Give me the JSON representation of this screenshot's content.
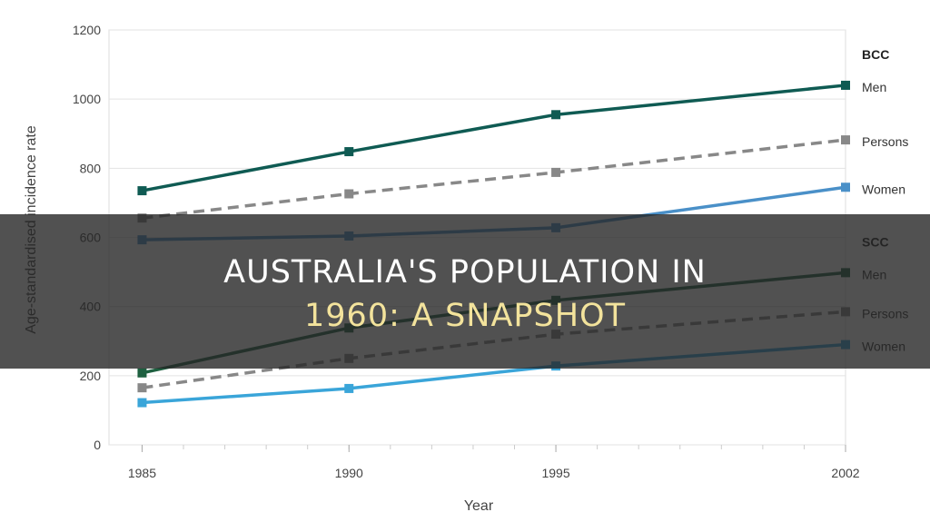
{
  "chart_data": {
    "type": "line",
    "xlabel": "Year",
    "ylabel": "Age-standardised incidence rate",
    "x": [
      1985,
      1990,
      1995,
      2002
    ],
    "x_tick_labels": [
      "1985",
      "1990",
      "1995",
      "2002"
    ],
    "xlim": [
      1984.2,
      2002
    ],
    "ylim": [
      0,
      1200
    ],
    "y_ticks": [
      0,
      200,
      400,
      600,
      800,
      1000,
      1200
    ],
    "legend_placement": "right",
    "groups": [
      {
        "name": "BCC",
        "series": [
          {
            "name": "Men",
            "values": [
              735,
              848,
              955,
              1040
            ],
            "color": "#0f5b53",
            "dashed": false
          },
          {
            "name": "Persons",
            "values": [
              656,
              726,
              788,
              882
            ],
            "color": "#888888",
            "dashed": true
          },
          {
            "name": "Women",
            "values": [
              593,
              604,
              628,
              745
            ],
            "color": "#4a90c8",
            "dashed": false
          }
        ]
      },
      {
        "name": "SCC",
        "series": [
          {
            "name": "Men",
            "values": [
              208,
              338,
              418,
              498
            ],
            "color": "#1e6040",
            "dashed": false
          },
          {
            "name": "Persons",
            "values": [
              165,
              250,
              320,
              385
            ],
            "color": "#888888",
            "dashed": true
          },
          {
            "name": "Women",
            "values": [
              122,
              163,
              228,
              290
            ],
            "color": "#3aa5d9",
            "dashed": false
          }
        ]
      }
    ]
  },
  "banner": {
    "line1": "Australia's Population In",
    "line2": "1960: A Snapshot"
  }
}
